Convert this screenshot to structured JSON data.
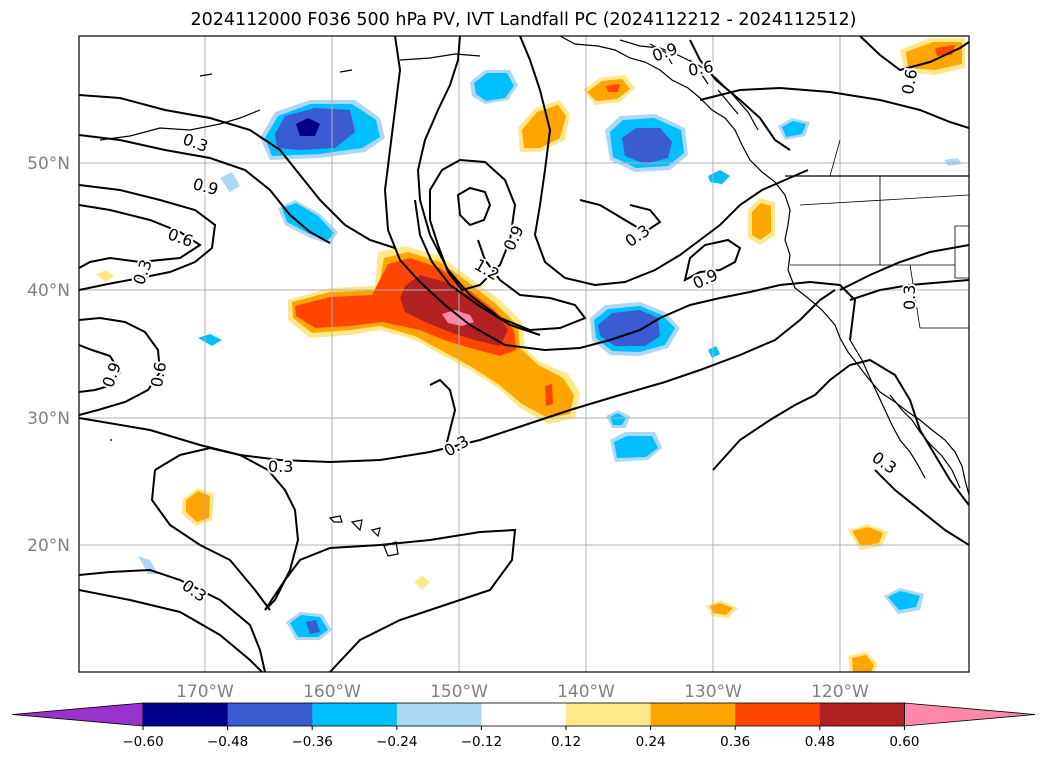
{
  "title": "2024112000 F036 500 hPa PV, IVT Landfall PC (2024112212 - 2024112512)",
  "lat_labels": [
    "50°N",
    "40°N",
    "30°N",
    "20°N"
  ],
  "lon_labels": [
    "170°W",
    "160°W",
    "150°W",
    "140°W",
    "130°W",
    "120°W"
  ],
  "contour_labels": [
    "0.3",
    "0.9",
    "0.6",
    "0.3",
    "0.9",
    "0.6",
    "0.3",
    "0.3",
    "1.2",
    "0.9",
    "0.3",
    "0.9",
    "0.9",
    "0.6",
    "0.6",
    "0.3",
    "0.3",
    "0.3"
  ],
  "colorbar": {
    "tick_labels": [
      "−0.60",
      "−0.48",
      "−0.36",
      "−0.24",
      "−0.12",
      "0.12",
      "0.24",
      "0.36",
      "0.48",
      "0.60"
    ],
    "bins": [
      {
        "color": "#9932cc"
      },
      {
        "color": "#00008b"
      },
      {
        "color": "#3a5bd1"
      },
      {
        "color": "#00bfff"
      },
      {
        "color": "#add8f5"
      },
      {
        "color": "#ffffff"
      },
      {
        "color": "#ffe88a"
      },
      {
        "color": "#ffa500"
      },
      {
        "color": "#ff4500"
      },
      {
        "color": "#b22222"
      },
      {
        "color": "#ff88aa"
      }
    ]
  },
  "colors": {
    "gridline": "#b0b0b0",
    "contour": "#000000",
    "coast": "#000000"
  }
}
